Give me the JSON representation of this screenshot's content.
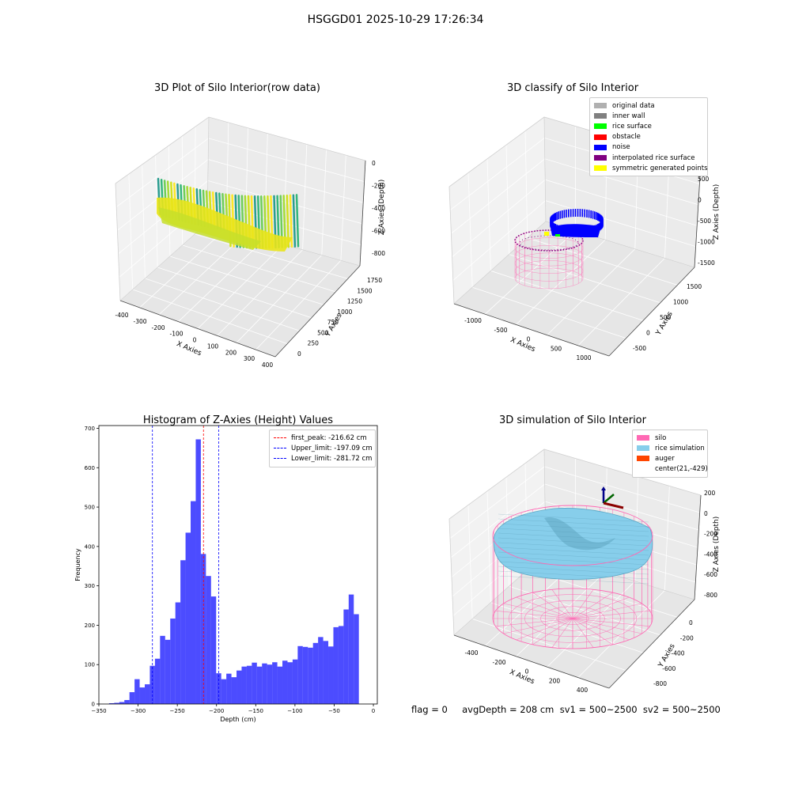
{
  "suptitle": "HSGGD01 2025-10-29 17:26:34",
  "panel1": {
    "title": "3D Plot of Silo Interior(row data)",
    "xlabel": "X Axies",
    "ylabel": "Y Axies",
    "zlabel": "Z Axies (Depth)",
    "xticks": [
      "-400",
      "-300",
      "-200",
      "-100",
      "0",
      "100",
      "200",
      "300",
      "400"
    ],
    "yticks": [
      "0",
      "250",
      "500",
      "750",
      "1000",
      "1250",
      "1500",
      "1750"
    ],
    "zticks": [
      "0",
      "-200",
      "-400",
      "-600",
      "-800"
    ]
  },
  "panel2": {
    "title": "3D classify of Silo Interior",
    "xlabel": "X Axies",
    "ylabel": "Y Axies",
    "zlabel": "Z Axies (Depth)",
    "xticks": [
      "-1000",
      "-500",
      "0",
      "500",
      "1000"
    ],
    "yticks": [
      "-500",
      "0",
      "500",
      "1000",
      "1500"
    ],
    "zticks": [
      "500",
      "0",
      "-500",
      "-1000",
      "-1500"
    ],
    "legend": [
      {
        "label": "original data",
        "color": "#b0b0b0"
      },
      {
        "label": "inner wall",
        "color": "#808080"
      },
      {
        "label": "rice surface",
        "color": "#00ff00"
      },
      {
        "label": "obstacle",
        "color": "#ff0000"
      },
      {
        "label": "noise",
        "color": "#0000ff"
      },
      {
        "label": "interpolated rice surface",
        "color": "#800080"
      },
      {
        "label": "symmetric generated points",
        "color": "#ffff00"
      }
    ]
  },
  "panel4": {
    "title": "3D simulation of Silo Interior",
    "xlabel": "X Axies",
    "ylabel": "Y Axies",
    "zlabel": "Z Axies (Depth)",
    "xticks": [
      "-400",
      "-200",
      "0",
      "200",
      "400"
    ],
    "yticks": [
      "0",
      "-200",
      "-400",
      "-600",
      "-800"
    ],
    "zticks": [
      "200",
      "0",
      "-200",
      "-400",
      "-600",
      "-800"
    ],
    "legend": [
      {
        "label": "silo",
        "color": "#ff69b4"
      },
      {
        "label": "rice simulation",
        "color": "#87ceeb"
      },
      {
        "label": "auger",
        "color": "#ff4500"
      },
      {
        "label": "center(21,-429)",
        "color": "#ffffff"
      }
    ]
  },
  "footer": {
    "text": "flag = 0     avgDepth = 208 cm  sv1 = 500~2500  sv2 = 500~2500"
  },
  "chart_data": [
    {
      "type": "scatter",
      "title": "3D Plot of Silo Interior(row data)",
      "xlabel": "X Axies",
      "ylabel": "Y Axies",
      "zlabel": "Z Axies (Depth)",
      "xlim": [
        -400,
        400
      ],
      "ylim": [
        0,
        1750
      ],
      "zlim": [
        -900,
        50
      ]
    },
    {
      "type": "scatter",
      "title": "3D classify of Silo Interior",
      "xlabel": "X Axies",
      "ylabel": "Y Axies",
      "zlabel": "Z Axies (Depth)",
      "xlim": [
        -1200,
        1200
      ],
      "ylim": [
        -700,
        1700
      ],
      "zlim": [
        -1700,
        600
      ],
      "legend_position": "top-right",
      "series": [
        {
          "name": "original data"
        },
        {
          "name": "inner wall"
        },
        {
          "name": "rice surface"
        },
        {
          "name": "obstacle"
        },
        {
          "name": "noise"
        },
        {
          "name": "interpolated rice surface"
        },
        {
          "name": "symmetric generated points"
        }
      ]
    },
    {
      "type": "bar",
      "title": "Histogram of Z-Axies (Height) Values",
      "xlabel": "Depth (cm)",
      "ylabel": "Frequency",
      "xlim": [
        -350,
        5
      ],
      "ylim": [
        0,
        707
      ],
      "xticks": [
        -350,
        -300,
        -250,
        -200,
        -150,
        -100,
        -50,
        0
      ],
      "yticks": [
        0,
        100,
        200,
        300,
        400,
        500,
        600,
        700
      ],
      "bin_width": 6.5,
      "bin_start": -337,
      "values": [
        2,
        3,
        5,
        10,
        30,
        63,
        42,
        50,
        97,
        115,
        173,
        163,
        217,
        258,
        365,
        435,
        515,
        672,
        381,
        325,
        273,
        78,
        63,
        77,
        68,
        85,
        95,
        97,
        105,
        95,
        103,
        100,
        106,
        95,
        110,
        106,
        113,
        147,
        145,
        143,
        155,
        170,
        160,
        146,
        195,
        198,
        240,
        278,
        228
      ],
      "bar_color": "#0000ff",
      "lines": [
        {
          "name": "first_peak: -216.62 cm",
          "x": -216.62,
          "color": "#ff0000"
        },
        {
          "name": "Upper_limit: -197.09 cm",
          "x": -197.09,
          "color": "#0000ff"
        },
        {
          "name": "Lower_limit: -281.72 cm",
          "x": -281.72,
          "color": "#0000ff"
        }
      ],
      "legend_position": "top-right"
    },
    {
      "type": "area",
      "title": "3D simulation of Silo Interior",
      "xlabel": "X Axies",
      "ylabel": "Y Axies",
      "zlabel": "Z Axies (Depth)",
      "xlim": [
        -500,
        500
      ],
      "ylim": [
        -900,
        100
      ],
      "zlim": [
        -900,
        250
      ],
      "legend_position": "top-right",
      "series": [
        {
          "name": "silo"
        },
        {
          "name": "rice simulation"
        },
        {
          "name": "auger"
        },
        {
          "name": "center(21,-429)"
        }
      ]
    }
  ]
}
